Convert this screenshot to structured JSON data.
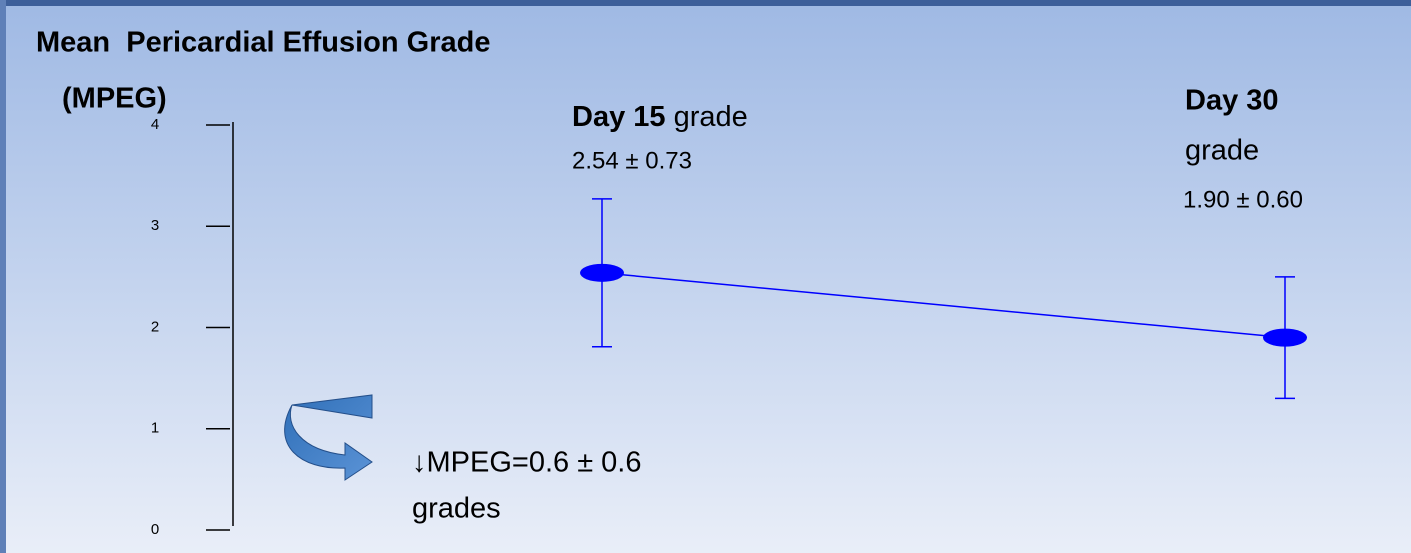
{
  "chart_data": {
    "type": "line",
    "title": "Mean  Pericardial Effusion Grade",
    "subtitle": "(MPEG)",
    "categories": [
      "Day 15",
      "Day 30"
    ],
    "category_note": "grade",
    "series": [
      {
        "color": "#0000ff",
        "values": [
          2.54,
          1.9
        ],
        "errors": [
          0.73,
          0.6
        ],
        "value_labels": [
          "2.54 ± 0.73",
          "1.90 ± 0.60"
        ]
      }
    ],
    "ylim": [
      0,
      4
    ],
    "yticks": [
      0,
      1,
      2,
      3,
      4
    ],
    "annotations": [
      "↓MPEG=0.6 ± 0.6",
      "grades"
    ]
  }
}
